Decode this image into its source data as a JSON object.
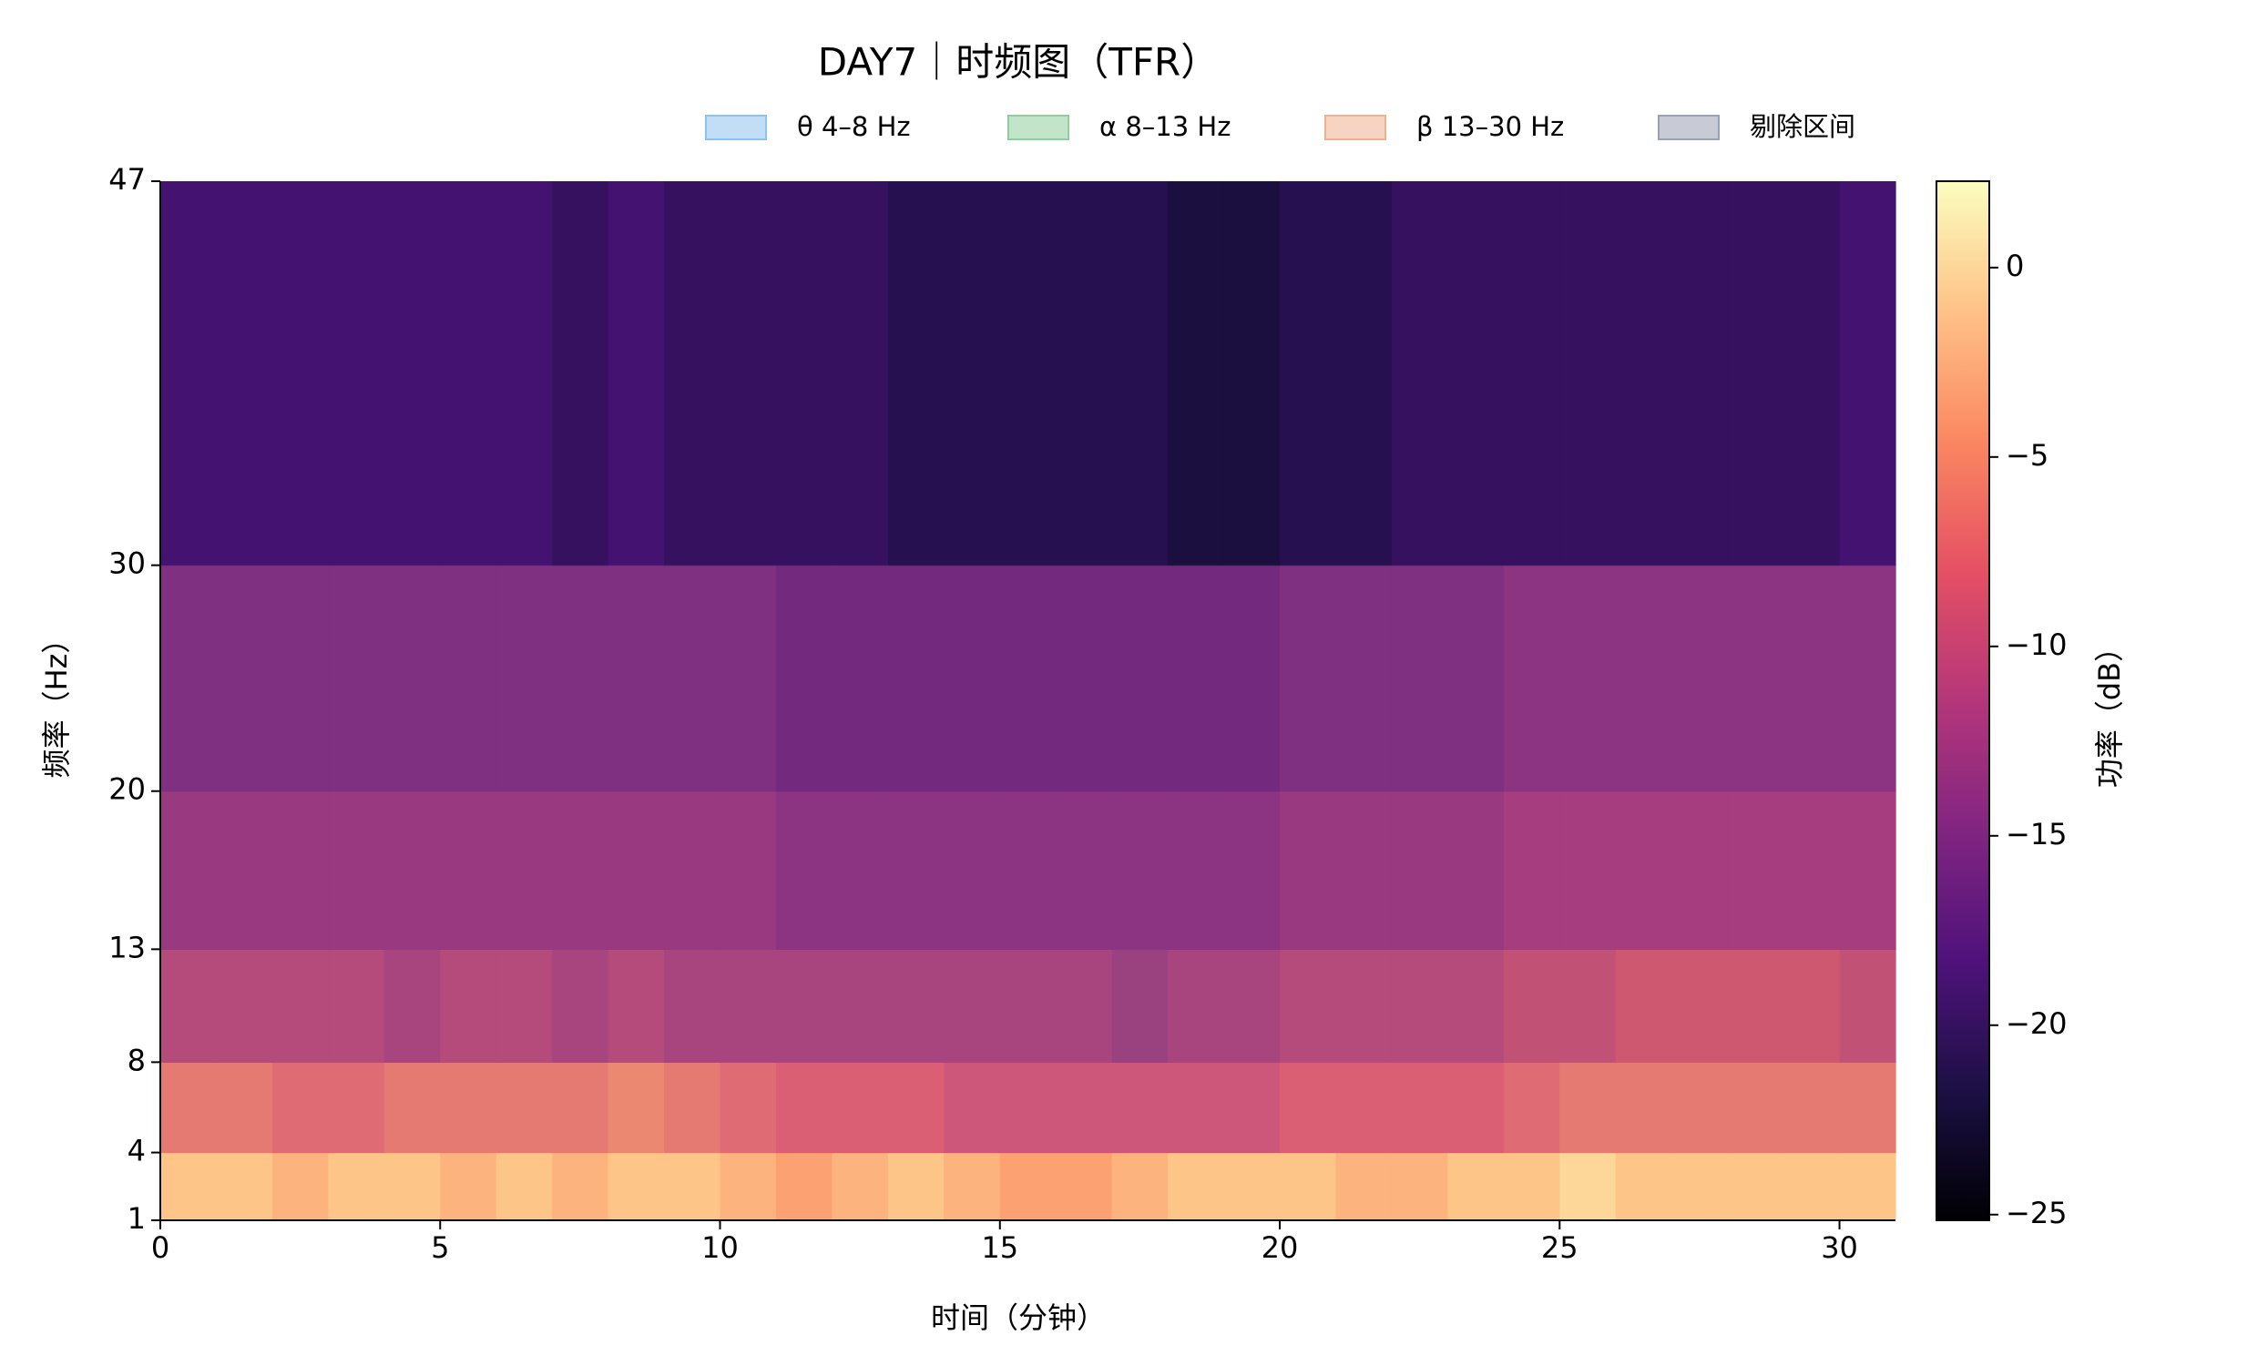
{
  "chart_data": {
    "type": "spectrogram",
    "title": "DAY7｜时频图（TFR）",
    "x_label": "时间（分钟）",
    "y_label": "频率（Hz）",
    "colorbar_label": "功率（dB）",
    "colormap": "magma",
    "x_edges": [
      0,
      1,
      2,
      3,
      4,
      5,
      6,
      7,
      8,
      9,
      10,
      11,
      12,
      13,
      14,
      15,
      16,
      17,
      18,
      19,
      20,
      21,
      22,
      23,
      24,
      25,
      26,
      27,
      28,
      29,
      30,
      31
    ],
    "y_edges": [
      1,
      4,
      8,
      13,
      20,
      30,
      47
    ],
    "values": [
      [
        -1,
        -1,
        -2,
        -1,
        -1,
        -2,
        -1,
        -2,
        -1,
        -1,
        -2,
        -3,
        -2,
        -1,
        -2,
        -3,
        -3,
        -2,
        -1,
        -1,
        -1,
        -2,
        -2,
        -1,
        -1,
        0,
        -1,
        -1,
        -1,
        -1,
        -1
      ],
      [
        -6,
        -6,
        -7,
        -7,
        -6,
        -6,
        -6,
        -6,
        -5,
        -6,
        -7,
        -8,
        -8,
        -8,
        -9,
        -9,
        -9,
        -9,
        -9,
        -9,
        -8,
        -8,
        -8,
        -8,
        -7,
        -6,
        -6,
        -6,
        -6,
        -6,
        -6
      ],
      [
        -11,
        -11,
        -11,
        -11,
        -12,
        -11,
        -11,
        -12,
        -11,
        -12,
        -12,
        -12,
        -12,
        -12,
        -12,
        -12,
        -12,
        -13,
        -12,
        -12,
        -11,
        -11,
        -11,
        -11,
        -10,
        -10,
        -9,
        -9,
        -9,
        -9,
        -10
      ],
      [
        -14,
        -14,
        -14,
        -14,
        -14,
        -14,
        -14,
        -14,
        -14,
        -14,
        -14,
        -15,
        -15,
        -15,
        -15,
        -15,
        -15,
        -15,
        -15,
        -15,
        -14,
        -14,
        -14,
        -14,
        -13,
        -13,
        -13,
        -13,
        -13,
        -13,
        -13
      ],
      [
        -16,
        -16,
        -16,
        -16,
        -16,
        -16,
        -16,
        -16,
        -16,
        -16,
        -16,
        -17,
        -17,
        -17,
        -17,
        -17,
        -17,
        -17,
        -17,
        -17,
        -16,
        -16,
        -16,
        -16,
        -15,
        -15,
        -15,
        -15,
        -15,
        -15,
        -15
      ],
      [
        -19,
        -19,
        -19,
        -19,
        -19,
        -19,
        -19,
        -20,
        -19,
        -20,
        -20,
        -20,
        -20,
        -21,
        -21,
        -21,
        -21,
        -21,
        -22,
        -22,
        -21,
        -21,
        -20,
        -20,
        -20,
        -20,
        -20,
        -20,
        -20,
        -20,
        -19
      ]
    ],
    "xlim": [
      0,
      31
    ],
    "xticks": [
      0,
      5,
      10,
      15,
      20,
      25,
      30
    ],
    "ylim": [
      1,
      47
    ],
    "yticks": [
      1,
      4,
      8,
      13,
      20,
      30,
      47
    ],
    "clim": [
      -25.15,
      2.28
    ],
    "cticks": [
      0,
      {
        "value": -5,
        "label": "−5"
      },
      {
        "value": -10,
        "label": "−10"
      },
      {
        "value": -15,
        "label": "−15"
      },
      {
        "value": -20,
        "label": "−20"
      },
      {
        "value": -25,
        "label": "−25"
      }
    ],
    "bands": [
      {
        "name": "θ 4–8 Hz",
        "range": [
          4,
          8
        ],
        "color": "#8ec3ee"
      },
      {
        "name": "α 8–13 Hz",
        "range": [
          8,
          13
        ],
        "color": "#8fcf9e"
      },
      {
        "name": "β 13–30 Hz",
        "range": [
          13,
          30
        ],
        "color": "#f0b08f"
      },
      {
        "name": "剔除区间",
        "color": "#9aa1b4"
      }
    ]
  }
}
